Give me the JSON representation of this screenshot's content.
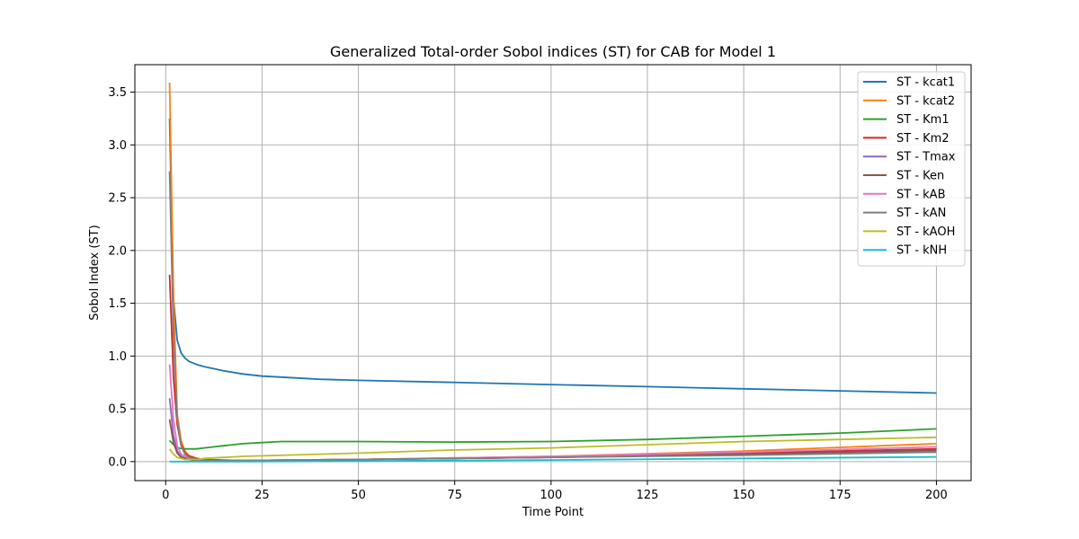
{
  "chart_data": {
    "type": "line",
    "title": "Generalized Total-order Sobol indices (ST) for CAB for Model 1",
    "xlabel": "Time Point",
    "ylabel": "Sobol Index (ST)",
    "xlim": [
      -8,
      209
    ],
    "ylim": [
      -0.18,
      3.76
    ],
    "x_ticks": [
      0,
      25,
      50,
      75,
      100,
      125,
      150,
      175,
      200
    ],
    "x_tick_labels": [
      "0",
      "25",
      "50",
      "75",
      "100",
      "125",
      "150",
      "175",
      "200"
    ],
    "y_ticks": [
      0.0,
      0.5,
      1.0,
      1.5,
      2.0,
      2.5,
      3.0,
      3.5
    ],
    "y_tick_labels": [
      "0.0",
      "0.5",
      "1.0",
      "1.5",
      "2.0",
      "2.5",
      "3.0",
      "3.5"
    ],
    "grid": true,
    "legend_position": "top-right",
    "series": [
      {
        "name": "ST - kcat1",
        "color": "#1f77b4",
        "x": [
          1,
          2,
          3,
          4,
          5,
          6,
          8,
          10,
          15,
          20,
          25,
          30,
          40,
          50,
          75,
          100,
          125,
          150,
          175,
          200
        ],
        "y": [
          3.25,
          1.55,
          1.15,
          1.03,
          0.98,
          0.95,
          0.92,
          0.9,
          0.86,
          0.83,
          0.81,
          0.8,
          0.78,
          0.77,
          0.75,
          0.73,
          0.71,
          0.69,
          0.67,
          0.65
        ]
      },
      {
        "name": "ST - kcat2",
        "color": "#ff7f0e",
        "x": [
          1,
          2,
          3,
          4,
          5,
          6,
          8,
          10,
          15,
          20,
          50,
          100,
          150,
          200
        ],
        "y": [
          3.59,
          1.6,
          0.45,
          0.2,
          0.1,
          0.06,
          0.03,
          0.02,
          0.01,
          0.01,
          0.02,
          0.05,
          0.1,
          0.17
        ]
      },
      {
        "name": "ST - Km1",
        "color": "#2ca02c",
        "x": [
          1,
          2,
          3,
          5,
          8,
          10,
          15,
          20,
          25,
          30,
          40,
          50,
          75,
          100,
          125,
          150,
          175,
          200
        ],
        "y": [
          0.2,
          0.16,
          0.13,
          0.12,
          0.12,
          0.13,
          0.15,
          0.17,
          0.18,
          0.19,
          0.19,
          0.19,
          0.185,
          0.19,
          0.21,
          0.24,
          0.27,
          0.31
        ]
      },
      {
        "name": "ST - Km2",
        "color": "#d62728",
        "x": [
          1,
          2,
          3,
          4,
          5,
          6,
          8,
          10,
          20,
          50,
          100,
          150,
          200
        ],
        "y": [
          1.77,
          0.8,
          0.35,
          0.16,
          0.08,
          0.05,
          0.03,
          0.02,
          0.01,
          0.02,
          0.04,
          0.08,
          0.12
        ]
      },
      {
        "name": "ST - Tmax",
        "color": "#9467bd",
        "x": [
          1,
          2,
          3,
          4,
          6,
          8,
          10,
          20,
          50,
          100,
          150,
          200
        ],
        "y": [
          0.6,
          0.25,
          0.1,
          0.05,
          0.02,
          0.01,
          0.01,
          0.01,
          0.02,
          0.04,
          0.07,
          0.1
        ]
      },
      {
        "name": "ST - Ken",
        "color": "#8c564b",
        "x": [
          1,
          2,
          3,
          4,
          6,
          8,
          10,
          20,
          50,
          100,
          150,
          200
        ],
        "y": [
          0.4,
          0.18,
          0.08,
          0.04,
          0.02,
          0.01,
          0.01,
          0.01,
          0.02,
          0.04,
          0.07,
          0.11
        ]
      },
      {
        "name": "ST - kAB",
        "color": "#e377c2",
        "x": [
          1,
          2,
          3,
          4,
          6,
          8,
          10,
          20,
          50,
          100,
          150,
          200
        ],
        "y": [
          0.92,
          0.4,
          0.15,
          0.07,
          0.03,
          0.02,
          0.01,
          0.01,
          0.02,
          0.05,
          0.09,
          0.14
        ]
      },
      {
        "name": "ST - kAN",
        "color": "#7f7f7f",
        "x": [
          1,
          2,
          3,
          4,
          5,
          6,
          8,
          10,
          20,
          50,
          100,
          150,
          200
        ],
        "y": [
          2.75,
          1.2,
          0.4,
          0.15,
          0.07,
          0.04,
          0.02,
          0.01,
          0.01,
          0.02,
          0.04,
          0.06,
          0.09
        ]
      },
      {
        "name": "ST - kAOH",
        "color": "#bcbd22",
        "x": [
          1,
          2,
          3,
          4,
          5,
          6,
          8,
          10,
          20,
          50,
          75,
          100,
          125,
          150,
          175,
          200
        ],
        "y": [
          0.12,
          0.07,
          0.04,
          0.03,
          0.02,
          0.02,
          0.02,
          0.03,
          0.05,
          0.08,
          0.11,
          0.13,
          0.16,
          0.19,
          0.21,
          0.23
        ]
      },
      {
        "name": "ST - kNH",
        "color": "#17becf",
        "x": [
          1,
          5,
          10,
          20,
          50,
          100,
          150,
          200
        ],
        "y": [
          0.0,
          0.0,
          0.0,
          0.0,
          0.005,
          0.015,
          0.03,
          0.045
        ]
      }
    ]
  }
}
